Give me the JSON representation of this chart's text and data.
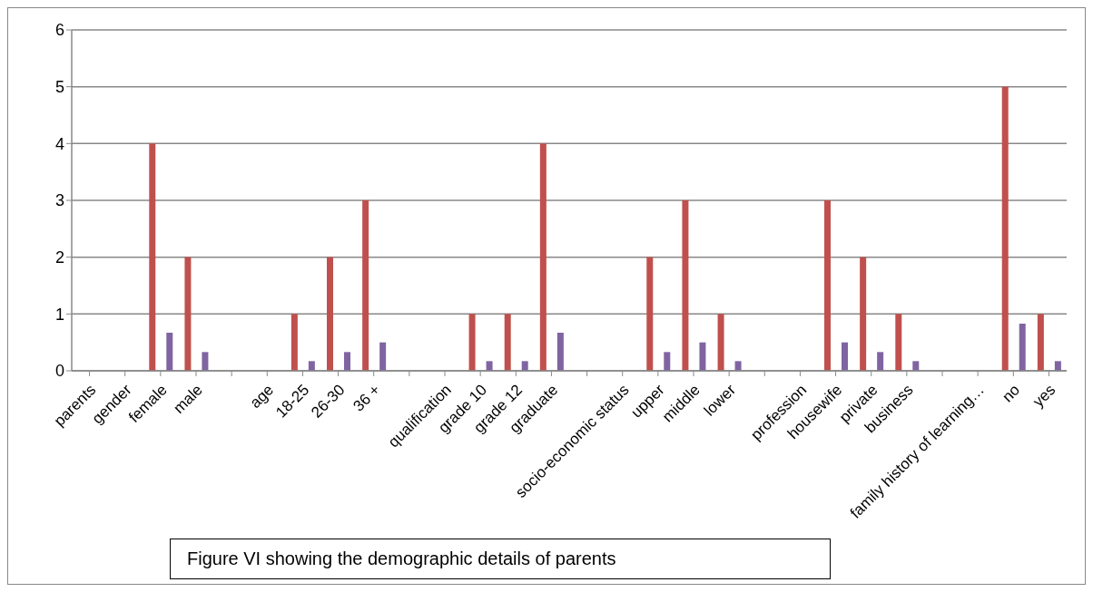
{
  "chart_data": {
    "type": "bar",
    "categories": [
      "parents",
      "gender",
      "female",
      "male",
      null,
      "age",
      "18-25",
      "26-30",
      "36 +",
      null,
      "qualification",
      "grade 10",
      "grade 12",
      "graduate",
      null,
      "socio-economic status",
      "upper",
      "middle",
      "lower",
      null,
      "profession",
      "housewife",
      "private",
      "business",
      null,
      "family history of learning…",
      "no",
      "yes"
    ],
    "series": [
      {
        "color": "#c0504d",
        "values": [
          null,
          null,
          4,
          2,
          null,
          null,
          1,
          2,
          3,
          null,
          null,
          1,
          1,
          4,
          null,
          null,
          2,
          3,
          1,
          null,
          null,
          3,
          2,
          1,
          null,
          null,
          5,
          1
        ]
      },
      {
        "color": "#8064a2",
        "values": [
          null,
          null,
          0.67,
          0.33,
          null,
          null,
          0.17,
          0.33,
          0.5,
          null,
          null,
          0.17,
          0.17,
          0.67,
          null,
          null,
          0.33,
          0.5,
          0.17,
          null,
          null,
          0.5,
          0.33,
          0.17,
          null,
          null,
          0.83,
          0.17
        ]
      }
    ],
    "ylim": [
      0,
      6
    ],
    "yticks": [
      0,
      1,
      2,
      3,
      4,
      5,
      6
    ],
    "grid": "y",
    "annotations": [
      "Figure VI showing the demographic details of parents"
    ]
  }
}
